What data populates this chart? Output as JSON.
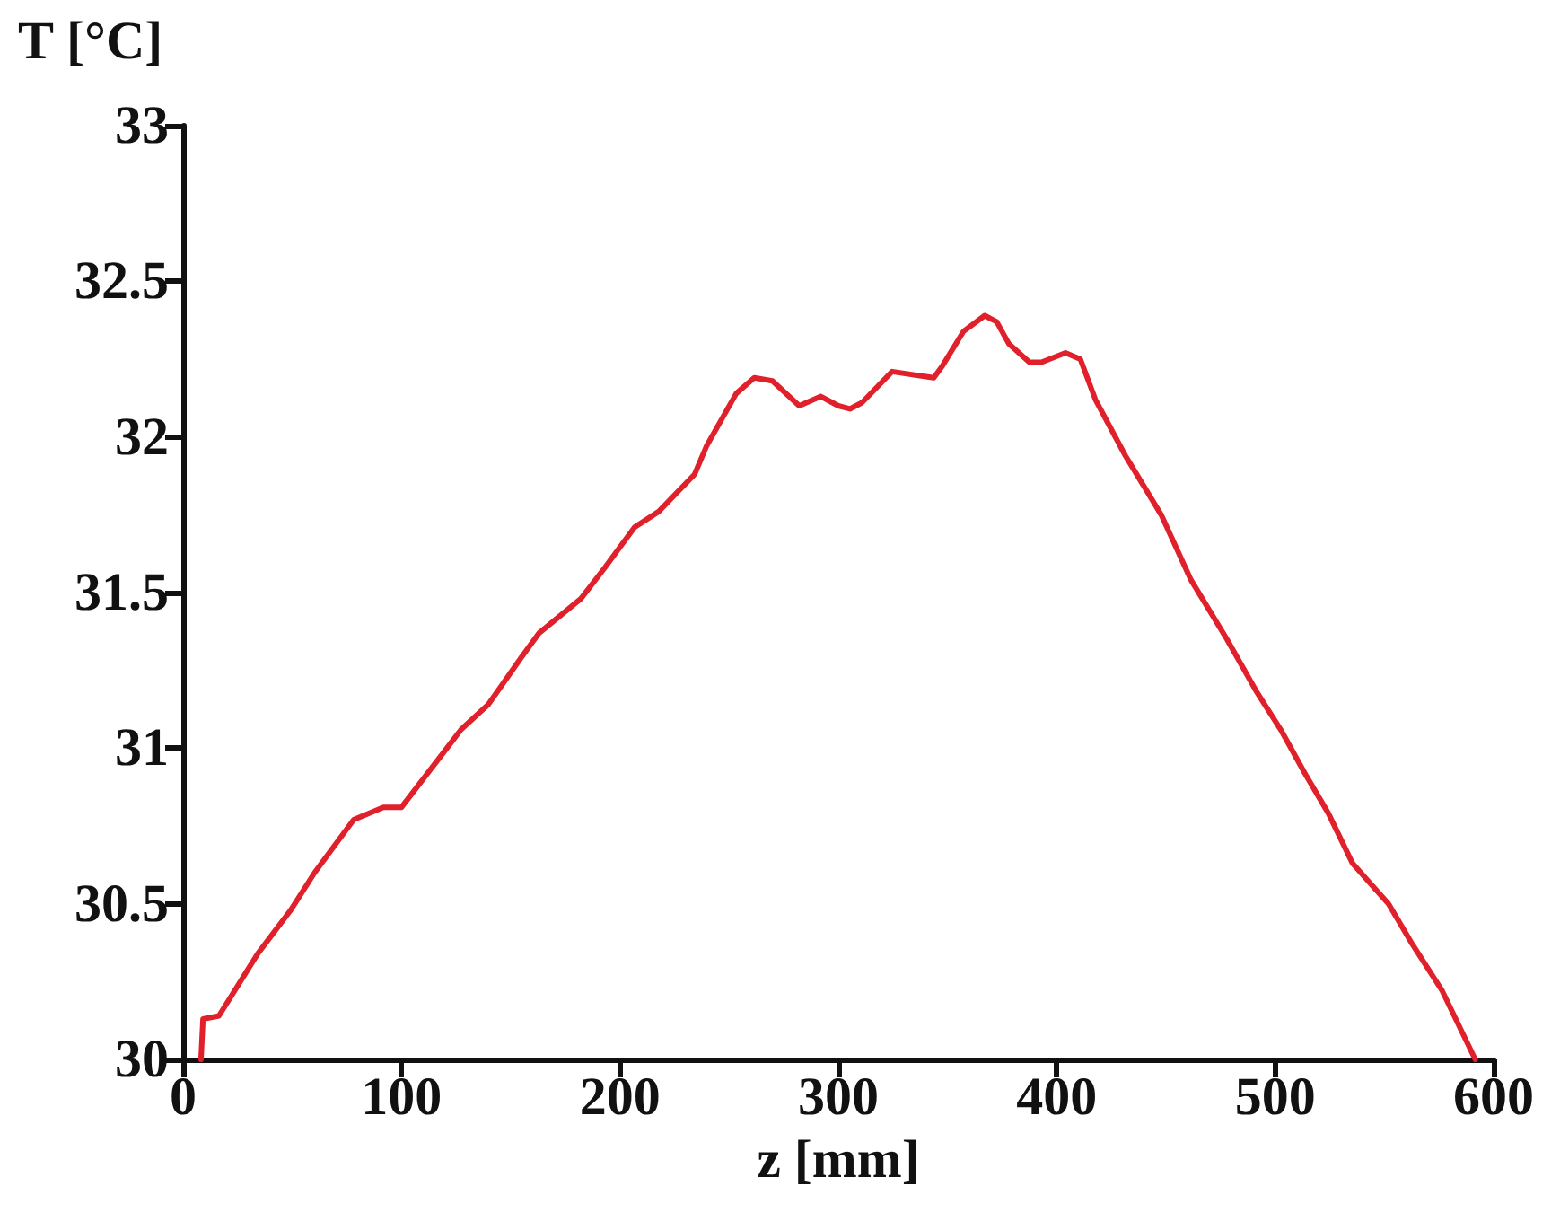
{
  "chart_data": {
    "type": "line",
    "xlabel": "z [mm]",
    "ylabel": "T [°C]",
    "xlim": [
      0,
      600
    ],
    "xticks": [
      0,
      100,
      200,
      300,
      400,
      500,
      600
    ],
    "ylim": [
      30,
      33
    ],
    "yticks": [
      30,
      30.5,
      31,
      31.5,
      32,
      32.5,
      33
    ],
    "marker": "none",
    "line_style": "solid",
    "series": [
      {
        "color": "#e0202a",
        "x": [
          8.2,
          9.1,
          16.4,
          34.2,
          49.3,
          60.2,
          78.1,
          91.7,
          100,
          116.4,
          127.3,
          139.7,
          154.7,
          163,
          182.1,
          193.1,
          206.7,
          217.7,
          234.2,
          239.6,
          253.3,
          261.5,
          269.8,
          282.1,
          292,
          300,
          305.3,
          310.8,
          324.6,
          343.7,
          347.8,
          357.4,
          367,
          372.5,
          378,
          387.5,
          393,
          404,
          410.8,
          417.7,
          431.4,
          447.8,
          461.5,
          477.9,
          491.6,
          502.5,
          513.5,
          524.4,
          535.4,
          551.9,
          562.8,
          576.5,
          591.6
        ],
        "values": [
          30.0,
          30.13,
          30.14,
          30.34,
          30.48,
          30.6,
          30.77,
          30.81,
          30.81,
          30.96,
          31.06,
          31.14,
          31.29,
          31.37,
          31.48,
          31.58,
          31.71,
          31.76,
          31.88,
          31.97,
          32.14,
          32.19,
          32.18,
          32.1,
          32.13,
          32.1,
          32.09,
          32.11,
          32.21,
          32.19,
          32.23,
          32.34,
          32.39,
          32.37,
          32.3,
          32.24,
          32.24,
          32.27,
          32.25,
          32.12,
          31.94,
          31.75,
          31.54,
          31.35,
          31.18,
          31.06,
          30.92,
          30.79,
          30.63,
          30.5,
          30.37,
          30.22,
          30.0
        ]
      }
    ]
  }
}
